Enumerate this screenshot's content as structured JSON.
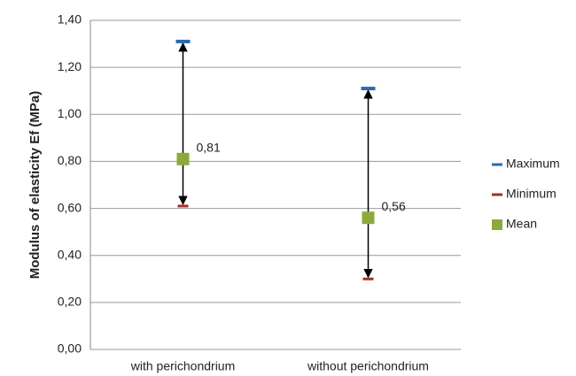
{
  "chart_data": {
    "type": "range",
    "y_label": "Modulus of elasticity Ef (MPa)",
    "categories": [
      "with perichondrium",
      "without perichondrium"
    ],
    "series": [
      {
        "name": "Maximum",
        "color": "#2a6ab0",
        "values": [
          1.31,
          1.11
        ]
      },
      {
        "name": "Minimum",
        "color": "#a0302a",
        "values": [
          0.61,
          0.3
        ]
      },
      {
        "name": "Mean",
        "color": "#8aaa3a",
        "values": [
          0.81,
          0.56
        ],
        "value_labels": [
          "0,81",
          "0,56"
        ]
      }
    ],
    "ylim": [
      0,
      1.4
    ],
    "yticks": [
      {
        "value": 0,
        "label": "0,00"
      },
      {
        "value": 0.2,
        "label": "0,20"
      },
      {
        "value": 0.4,
        "label": "0,40"
      },
      {
        "value": 0.6,
        "label": "0,60"
      },
      {
        "value": 0.8,
        "label": "0,80"
      },
      {
        "value": 1.0,
        "label": "1,00"
      },
      {
        "value": 1.2,
        "label": "1,20"
      },
      {
        "value": 1.4,
        "label": "1,40"
      }
    ],
    "grid": true,
    "legend": "right"
  }
}
